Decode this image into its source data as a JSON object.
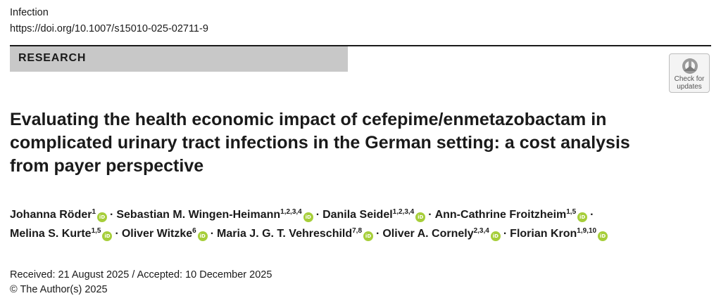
{
  "header": {
    "journal": "Infection",
    "doi": "https://doi.org/10.1007/s15010-025-02711-9"
  },
  "section": {
    "label": "RESEARCH"
  },
  "check_for_updates": {
    "line1": "Check for",
    "line2": "updates"
  },
  "title": "Evaluating the health economic impact of cefepime/enmetazobactam in complicated urinary tract infections in the German setting: a cost analysis from payer perspective",
  "authors": [
    {
      "name": "Johanna Röder",
      "affil": "1"
    },
    {
      "name": "Sebastian M. Wingen-Heimann",
      "affil": "1,2,3,4"
    },
    {
      "name": "Danila Seidel",
      "affil": "1,2,3,4"
    },
    {
      "name": "Ann-Cathrine Froitzheim",
      "affil": "1,5"
    },
    {
      "name": "Melina S. Kurte",
      "affil": "1,5"
    },
    {
      "name": "Oliver Witzke",
      "affil": "6"
    },
    {
      "name": "Maria J. G. T. Vehreschild",
      "affil": "7,8"
    },
    {
      "name": "Oliver A. Cornely",
      "affil": "2,3,4"
    },
    {
      "name": "Florian Kron",
      "affil": "1,9,10"
    }
  ],
  "orcid_label": "iD",
  "separator": "·",
  "footer": {
    "dates": "Received: 21 August 2025 / Accepted: 10 December 2025",
    "copyright": "© The Author(s) 2025"
  },
  "colors": {
    "orcid": "#a6ce39",
    "section_bar": "#c8c8c8",
    "text": "#1a1a1a"
  },
  "icons": {
    "orcid": "orcid-icon",
    "check_for_updates": "check-for-updates-icon"
  }
}
